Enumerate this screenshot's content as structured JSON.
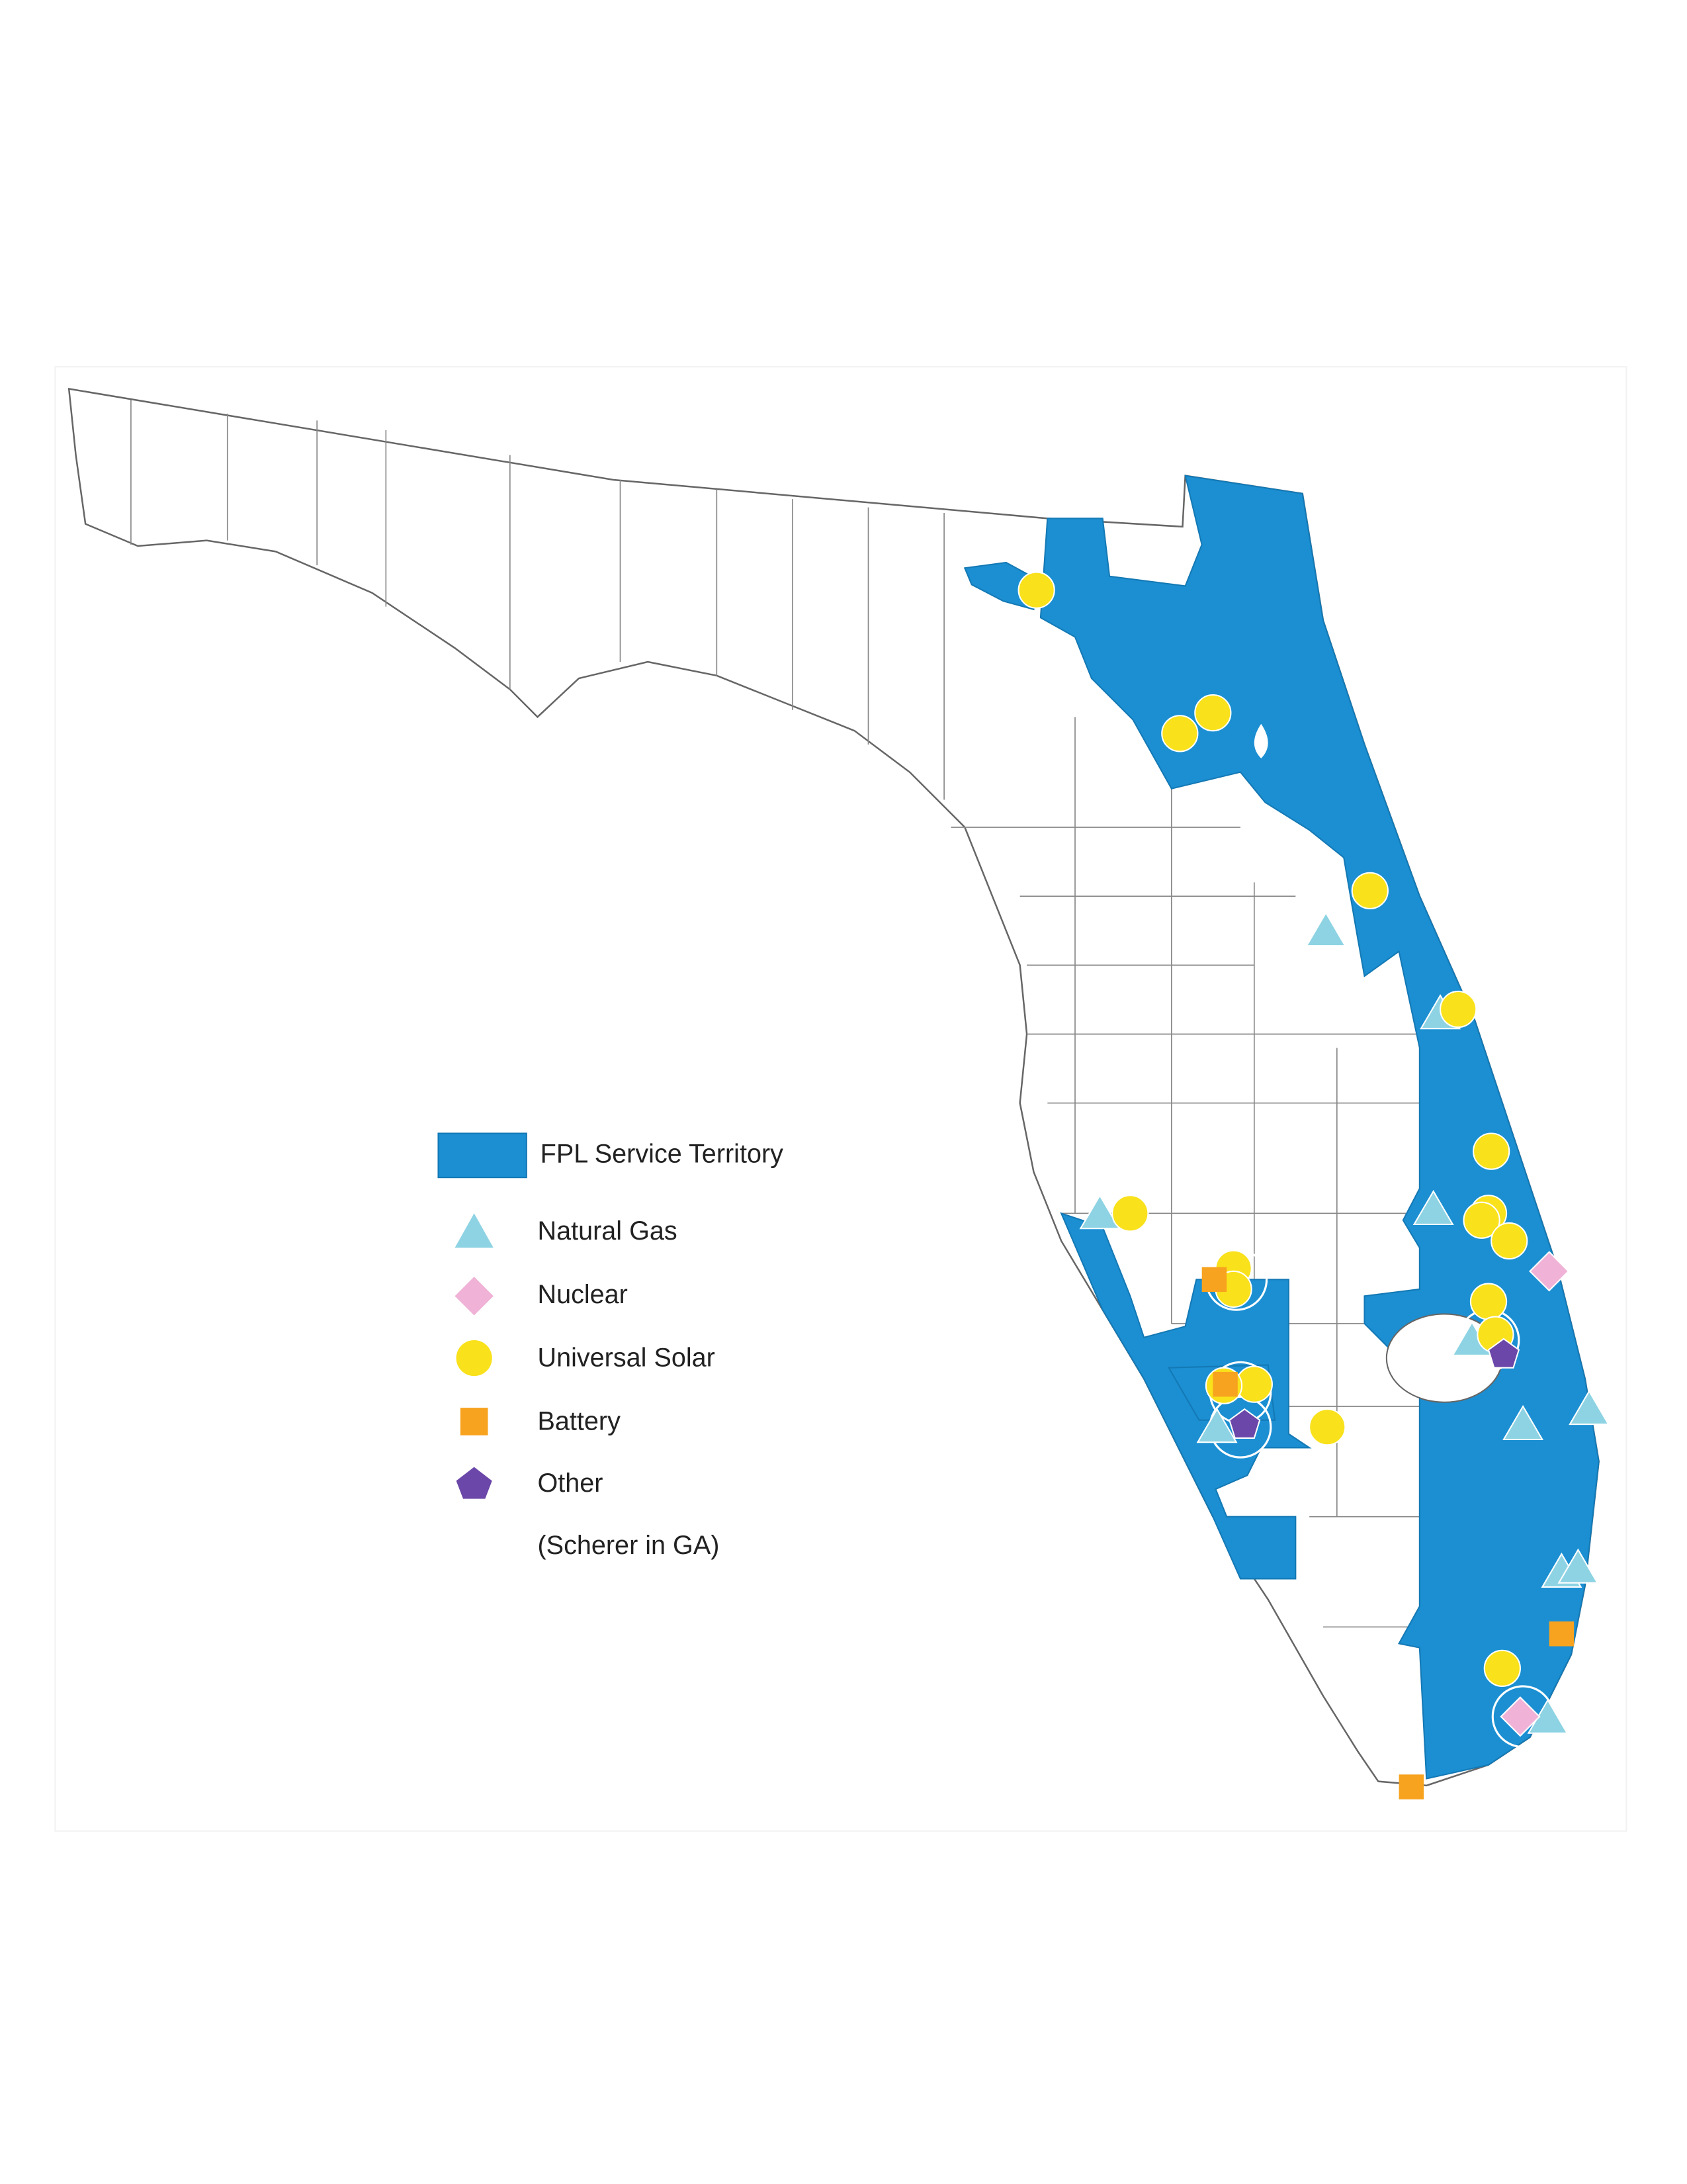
{
  "legend": {
    "items": [
      {
        "label": "FPL Service Territory"
      },
      {
        "label": "Natural Gas"
      },
      {
        "label": "Nuclear"
      },
      {
        "label": "Universal Solar"
      },
      {
        "label": "Battery"
      },
      {
        "label": "Other"
      }
    ],
    "note": "(Scherer in GA)"
  }
}
